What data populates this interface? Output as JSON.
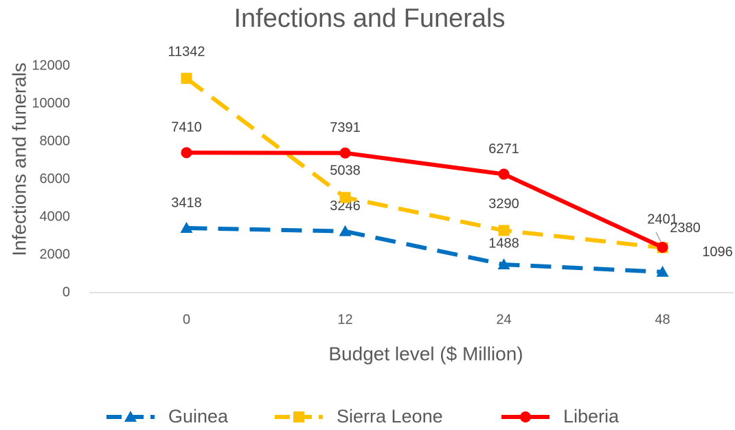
{
  "chart_data": {
    "type": "line",
    "title": "Infections and Funerals",
    "x_label": "Budget level ($ Million)",
    "y_label": "Infections and funerals",
    "categories": [
      "0",
      "12",
      "24",
      "48"
    ],
    "series": [
      {
        "name": "Guinea",
        "color": "#0070C0",
        "marker": "triangle",
        "dash": "dashed",
        "values": [
          3418,
          3246,
          1488,
          1096
        ]
      },
      {
        "name": "Sierra Leone",
        "color": "#FFC000",
        "marker": "square",
        "dash": "dashed",
        "values": [
          11342,
          5038,
          3290,
          2380
        ]
      },
      {
        "name": "Liberia",
        "color": "#FF0000",
        "marker": "circle",
        "dash": "solid",
        "values": [
          7410,
          7391,
          6271,
          2401
        ]
      }
    ],
    "ylim": [
      0,
      12000
    ],
    "yticks": [
      0,
      2000,
      4000,
      6000,
      8000,
      10000,
      12000
    ],
    "grid": false,
    "legend": "bottom"
  }
}
